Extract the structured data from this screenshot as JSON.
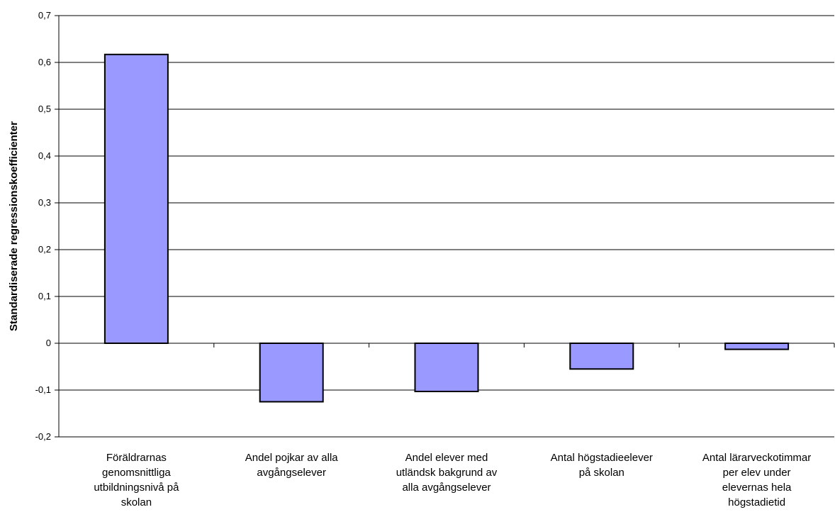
{
  "chart_data": {
    "type": "bar",
    "title": "",
    "xlabel": "",
    "ylabel": "Standardiserade regressionskoefficienter",
    "categories": [
      [
        "Föräldrarnas",
        "genomsnittliga",
        "utbildningsnivå på",
        "skolan"
      ],
      [
        "Andel pojkar av alla",
        "avgångselever"
      ],
      [
        "Andel elever med",
        "utländsk bakgrund av",
        "alla avgångselever"
      ],
      [
        "Antal högstadieelever",
        "på skolan"
      ],
      [
        "Antal lärarveckotimmar",
        "per elev under",
        "elevernas hela",
        "högstadietid"
      ]
    ],
    "values": [
      0.617,
      -0.125,
      -0.103,
      -0.055,
      -0.013
    ],
    "ylim": [
      -0.2,
      0.7
    ],
    "yticks": [
      "-0,2",
      "-0,1",
      "0",
      "0,1",
      "0,2",
      "0,3",
      "0,4",
      "0,5",
      "0,6",
      "0,7"
    ],
    "grid": true,
    "legend": "none",
    "colors": {
      "bar_fill": "#9999ff",
      "bar_stroke": "#000000",
      "grid": "#000000"
    }
  }
}
